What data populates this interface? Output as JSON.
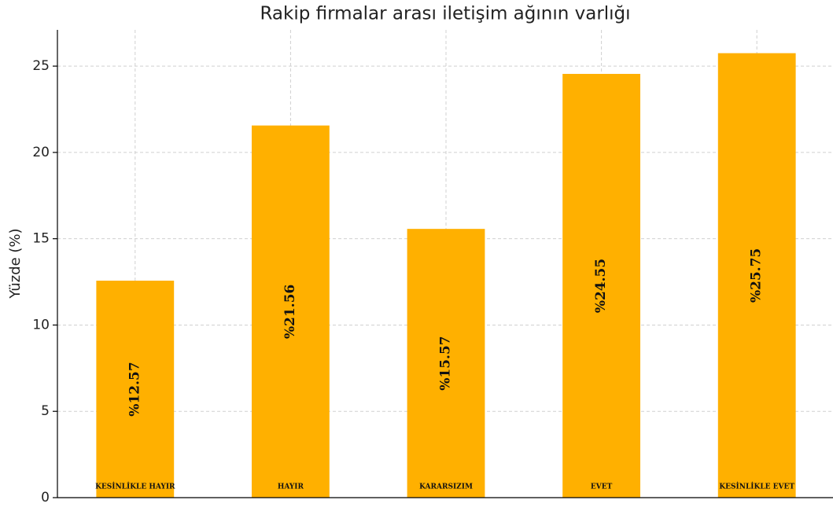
{
  "chart_data": {
    "type": "bar",
    "title": "Rakip firmalar arası iletişim ağının varlığı",
    "ylabel": "Yüzde (%)",
    "categories": [
      "KESİNLİKLE HAYIR",
      "HAYIR",
      "KARARSIZIM",
      "EVET",
      "KESİNLİKLE EVET"
    ],
    "values": [
      12.57,
      21.56,
      15.57,
      24.55,
      25.75
    ],
    "value_labels": [
      "%12.57",
      "%21.56",
      "%15.57",
      "%24.55",
      "%25.75"
    ],
    "color": "#ffb000",
    "ylim": [
      0,
      27.1
    ],
    "yticks": [
      0,
      5,
      10,
      15,
      20,
      25
    ],
    "grid": true
  }
}
